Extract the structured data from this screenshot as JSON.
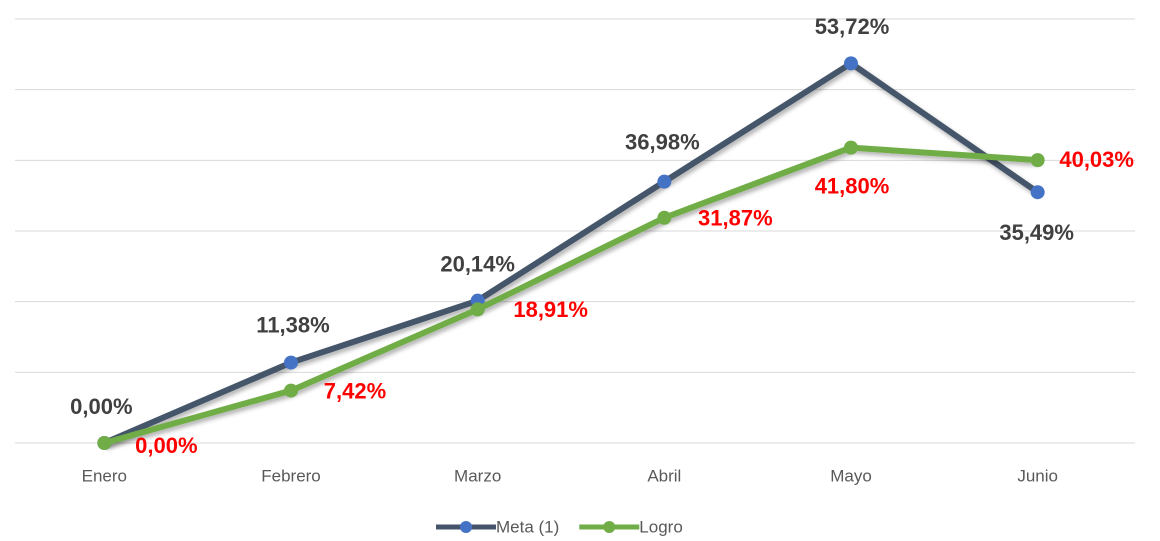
{
  "chart_data": {
    "type": "line",
    "categories": [
      "Enero",
      "Febrero",
      "Marzo",
      "Abril",
      "Mayo",
      "Junio"
    ],
    "series": [
      {
        "name": "Meta (1)",
        "color": "#44546a",
        "marker_color": "#4472c4",
        "label_color": "#404040",
        "values": [
          0,
          11.38,
          20.14,
          36.98,
          53.72,
          35.49
        ],
        "value_labels": [
          "0,00%",
          "11,38%",
          "20,14%",
          "36,98%",
          "53,72%",
          "35,49%"
        ]
      },
      {
        "name": "Logro",
        "color": "#70ad47",
        "marker_color": "#70ad47",
        "label_color": "#ff0000",
        "values": [
          0,
          7.42,
          18.91,
          31.87,
          41.8,
          40.03
        ],
        "value_labels": [
          "0,00%",
          "7,42%",
          "18,91%",
          "31,87%",
          "41,80%",
          "40,03%"
        ]
      }
    ],
    "ylim": [
      0,
      60
    ],
    "yticks": [
      0,
      10,
      20,
      30,
      40,
      50,
      60
    ],
    "grid": true,
    "legend": "bottom"
  }
}
